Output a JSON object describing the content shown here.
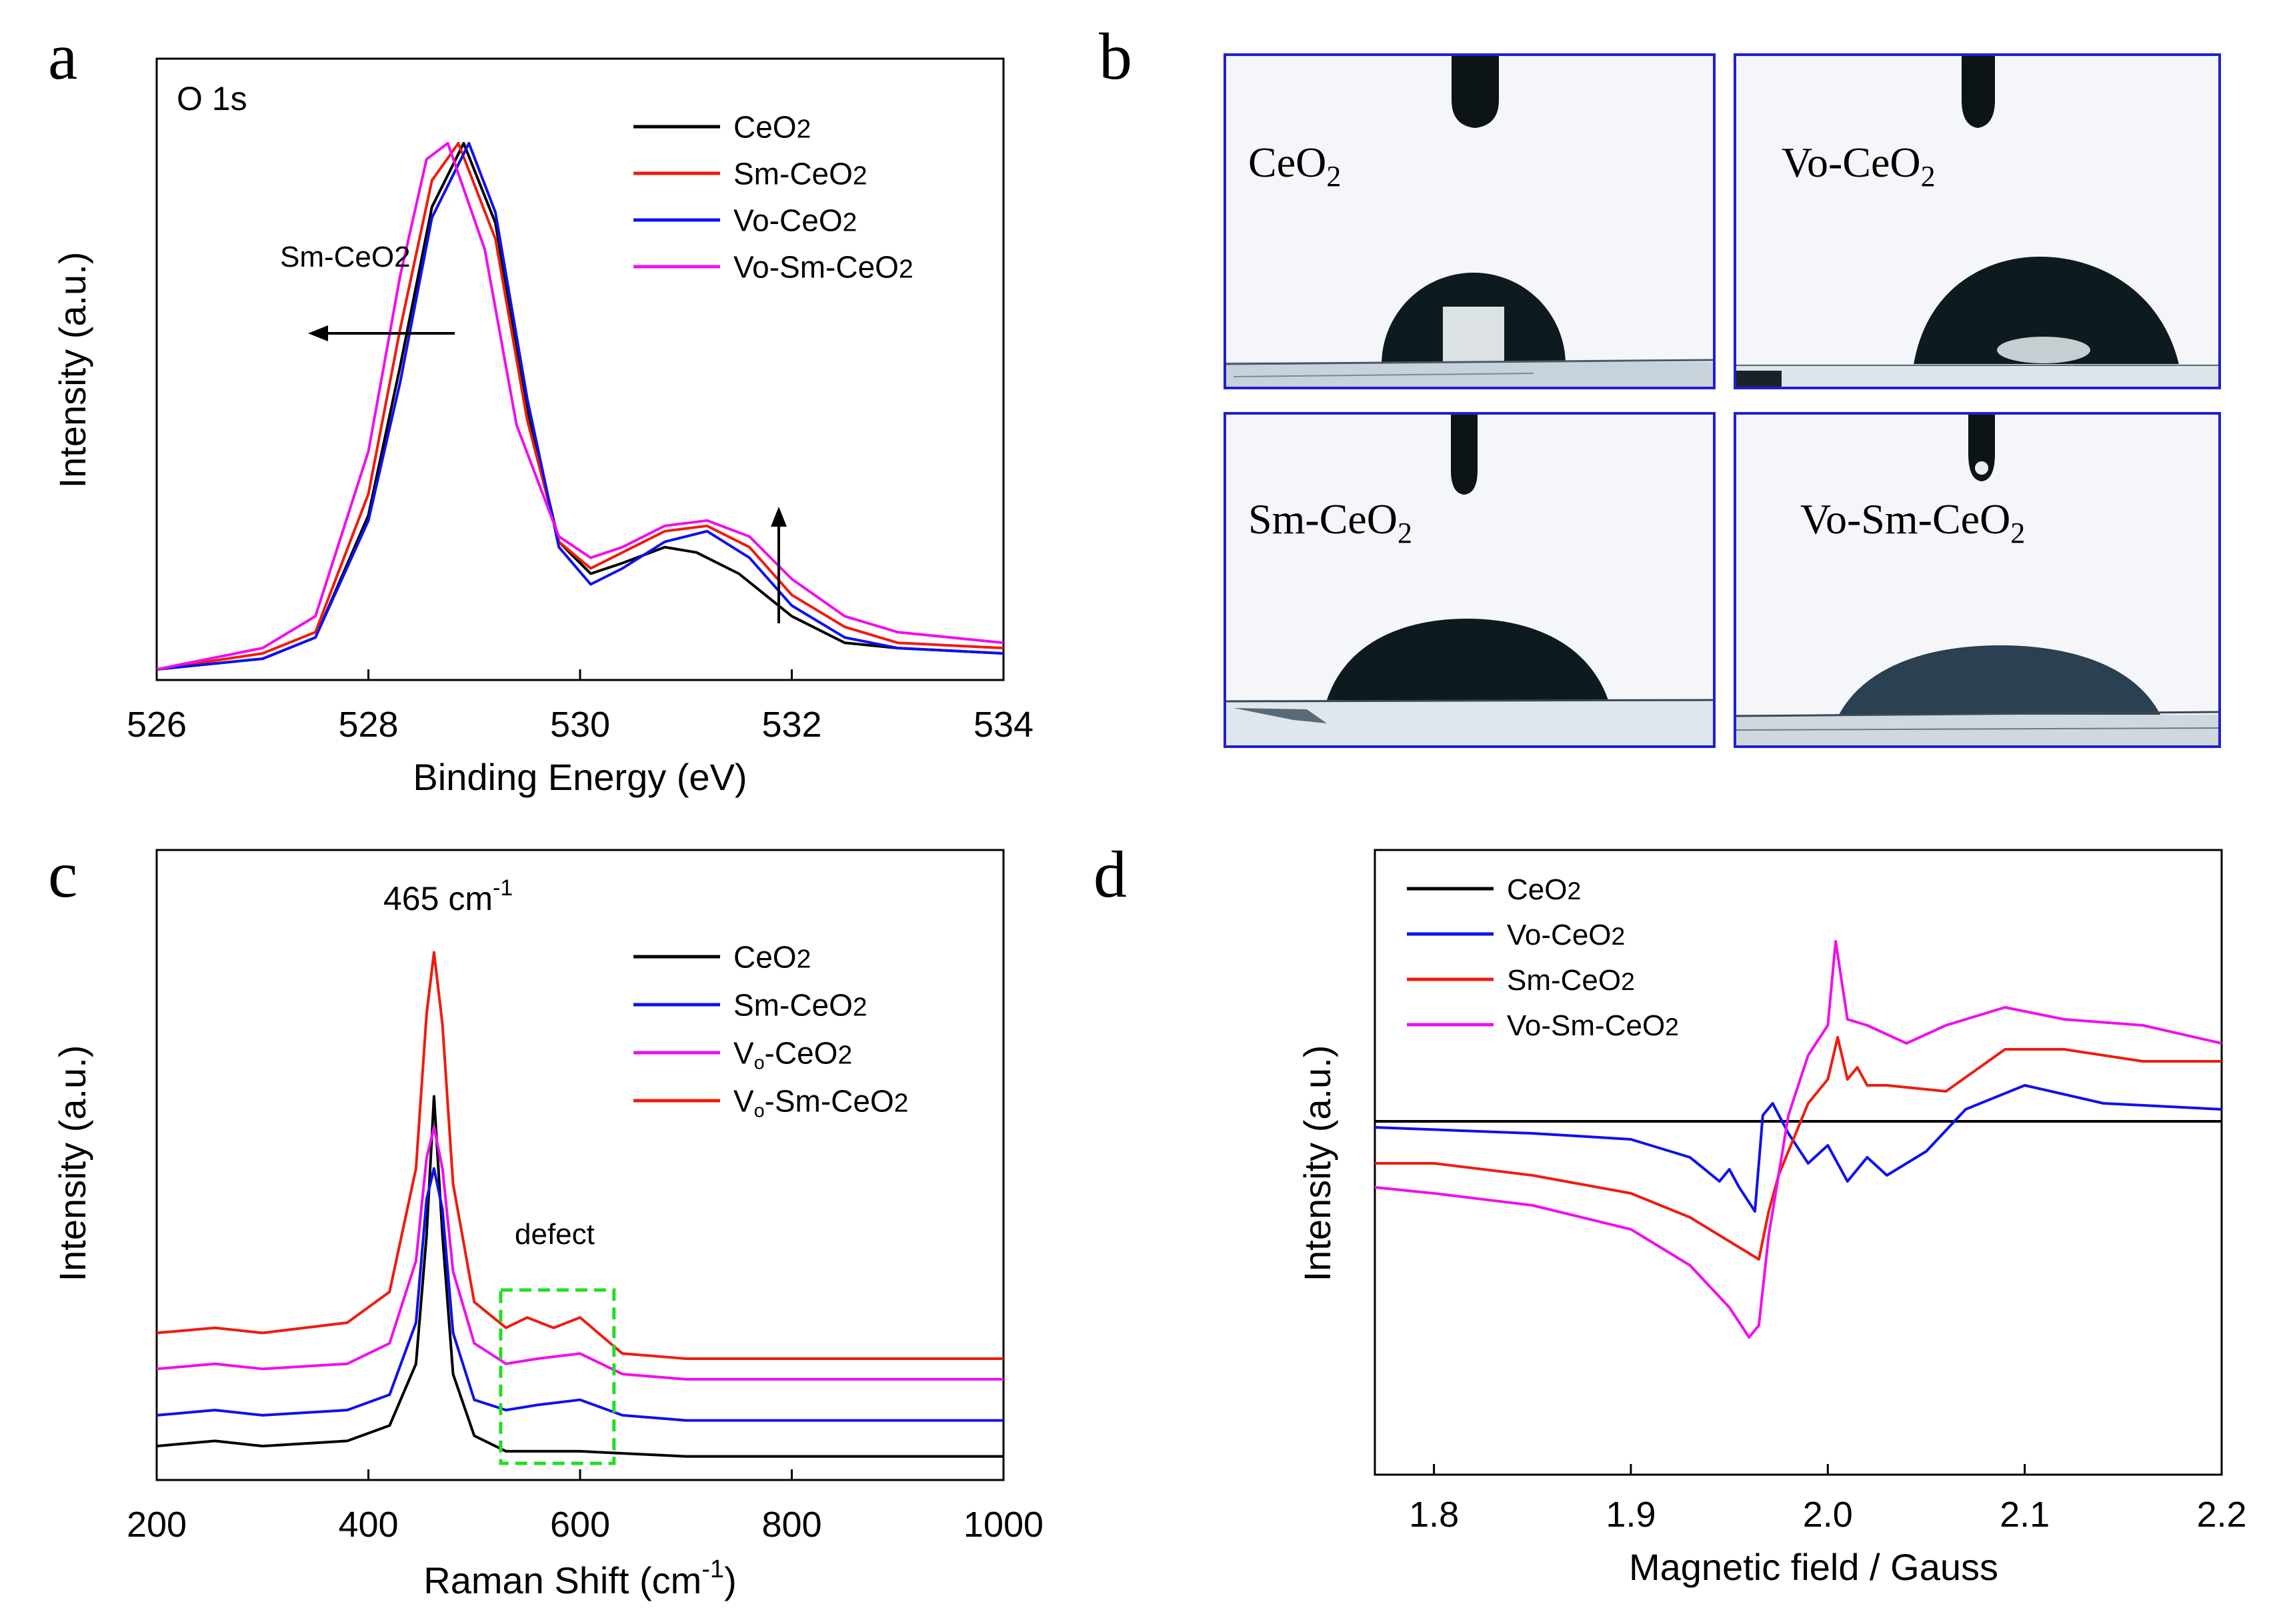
{
  "panels": {
    "a": {
      "letter": "a"
    },
    "b": {
      "letter": "b",
      "images": [
        {
          "label": "CeO",
          "sub": "2"
        },
        {
          "label": "Vo-CeO",
          "sub": "2"
        },
        {
          "label": "Sm-CeO",
          "sub": "2"
        },
        {
          "label": "Vo-Sm-CeO",
          "sub": "2"
        }
      ]
    },
    "c": {
      "letter": "c"
    },
    "d": {
      "letter": "d"
    }
  },
  "colors": {
    "black": "#000000",
    "red": "#ee1c10",
    "blue": "#1010ee",
    "magenta": "#ee10ee",
    "frame": "#2020d0",
    "green": "#22dd22"
  },
  "chart_data": [
    {
      "id": "a",
      "type": "line",
      "title": "",
      "xlabel": "Binding Energy (eV)",
      "ylabel": "Intensity (a.u.)",
      "xlim": [
        526,
        534
      ],
      "xticks": [
        526,
        528,
        530,
        532,
        534
      ],
      "ylim": [
        0,
        1.05
      ],
      "annotations": {
        "corner": "O 1s",
        "arrow_label": "Sm-CeO2"
      },
      "legend": {
        "placement": "top-right",
        "entries": [
          {
            "name": "CeO2",
            "base": "CeO",
            "sub": "2",
            "color": "#000000"
          },
          {
            "name": "Sm-CeO2",
            "base": "Sm-CeO",
            "sub": "2",
            "color": "#ee1c10"
          },
          {
            "name": "Vo-CeO2",
            "base": "Vo-CeO",
            "sub": "2",
            "color": "#1010ee"
          },
          {
            "name": "Vo-Sm-CeO2",
            "base": "Vo-Sm-CeO",
            "sub": "2",
            "color": "#ee10ee"
          }
        ]
      },
      "series": [
        {
          "name": "CeO2",
          "color": "#000000",
          "x": [
            526,
            527,
            527.5,
            528,
            528.3,
            528.6,
            528.9,
            529.2,
            529.5,
            529.8,
            530.1,
            530.4,
            530.8,
            531.1,
            531.5,
            532,
            532.5,
            533,
            534
          ],
          "y": [
            0.01,
            0.03,
            0.07,
            0.3,
            0.58,
            0.88,
            1.0,
            0.85,
            0.5,
            0.25,
            0.19,
            0.21,
            0.24,
            0.23,
            0.19,
            0.11,
            0.06,
            0.05,
            0.04
          ]
        },
        {
          "name": "Sm-CeO2",
          "color": "#ee1c10",
          "x": [
            526,
            527,
            527.5,
            528,
            528.3,
            528.6,
            528.85,
            529.2,
            529.5,
            529.8,
            530.1,
            530.4,
            530.8,
            531.2,
            531.6,
            532,
            532.5,
            533,
            534
          ],
          "y": [
            0.01,
            0.04,
            0.08,
            0.34,
            0.65,
            0.93,
            1.0,
            0.82,
            0.48,
            0.25,
            0.2,
            0.23,
            0.27,
            0.28,
            0.24,
            0.15,
            0.09,
            0.06,
            0.05
          ]
        },
        {
          "name": "Vo-CeO2",
          "color": "#1010ee",
          "x": [
            526,
            527,
            527.5,
            528,
            528.3,
            528.6,
            528.95,
            529.2,
            529.5,
            529.8,
            530.1,
            530.4,
            530.8,
            531.2,
            531.6,
            532,
            532.5,
            533,
            534
          ],
          "y": [
            0.01,
            0.03,
            0.07,
            0.29,
            0.55,
            0.86,
            1.0,
            0.87,
            0.52,
            0.24,
            0.17,
            0.2,
            0.25,
            0.27,
            0.22,
            0.13,
            0.07,
            0.05,
            0.04
          ]
        },
        {
          "name": "Vo-Sm-CeO2",
          "color": "#ee10ee",
          "x": [
            526,
            527,
            527.5,
            528,
            528.3,
            528.55,
            528.75,
            529.1,
            529.4,
            529.8,
            530.1,
            530.4,
            530.8,
            531.2,
            531.6,
            532,
            532.5,
            533,
            534
          ],
          "y": [
            0.01,
            0.05,
            0.11,
            0.42,
            0.75,
            0.97,
            1.0,
            0.8,
            0.47,
            0.26,
            0.22,
            0.24,
            0.28,
            0.29,
            0.26,
            0.18,
            0.11,
            0.08,
            0.06
          ]
        }
      ]
    },
    {
      "id": "c",
      "type": "line",
      "title": "",
      "xlabel": "Raman Shift (cm",
      "xlabel_sup": "-1",
      "xlabel_end": ")",
      "ylabel": "Intensity (a.u.)",
      "xlim": [
        200,
        1000
      ],
      "xticks": [
        200,
        400,
        600,
        800,
        1000
      ],
      "ylim": [
        0,
        1.05
      ],
      "annotations": {
        "peak_label": "465 cm",
        "peak_sup": "-1",
        "defect_label": "defect",
        "defect_box_x": [
          525,
          632
        ]
      },
      "legend": {
        "placement": "right",
        "entries": [
          {
            "name": "CeO2",
            "base": "CeO",
            "sub": "2",
            "color": "#000000"
          },
          {
            "name": "Sm-CeO2",
            "base": "Sm-CeO",
            "sub": "2",
            "color": "#1010ee"
          },
          {
            "name": "Vo-CeO2",
            "base": "V",
            "subo": "o",
            "rest": "-CeO",
            "sub": "2",
            "color": "#ee10ee"
          },
          {
            "name": "Vo-Sm-CeO2",
            "base": "V",
            "subo": "o",
            "rest": "-Sm-CeO",
            "sub": "2",
            "color": "#ee1c10"
          }
        ]
      },
      "series": [
        {
          "name": "CeO2",
          "color": "#000000",
          "x": [
            200,
            255,
            300,
            380,
            420,
            445,
            455,
            462,
            470,
            480,
            500,
            530,
            600,
            700,
            1000
          ],
          "y": [
            0.04,
            0.05,
            0.04,
            0.05,
            0.08,
            0.2,
            0.45,
            0.72,
            0.45,
            0.18,
            0.06,
            0.03,
            0.03,
            0.02,
            0.02
          ]
        },
        {
          "name": "Sm-CeO2",
          "color": "#1010ee",
          "x": [
            200,
            255,
            300,
            380,
            420,
            445,
            455,
            462,
            470,
            480,
            500,
            530,
            560,
            600,
            640,
            700,
            1000
          ],
          "y": [
            0.1,
            0.11,
            0.1,
            0.11,
            0.14,
            0.28,
            0.52,
            0.58,
            0.5,
            0.26,
            0.13,
            0.11,
            0.12,
            0.13,
            0.1,
            0.09,
            0.09
          ]
        },
        {
          "name": "Vo-CeO2",
          "color": "#ee10ee",
          "x": [
            200,
            255,
            300,
            380,
            420,
            445,
            455,
            462,
            470,
            480,
            500,
            530,
            560,
            600,
            640,
            700,
            1000
          ],
          "y": [
            0.19,
            0.2,
            0.19,
            0.2,
            0.24,
            0.4,
            0.6,
            0.66,
            0.58,
            0.38,
            0.24,
            0.2,
            0.21,
            0.22,
            0.18,
            0.17,
            0.17
          ]
        },
        {
          "name": "Vo-Sm-CeO2",
          "color": "#ee1c10",
          "x": [
            200,
            255,
            300,
            380,
            420,
            445,
            455,
            462,
            470,
            480,
            500,
            530,
            550,
            575,
            600,
            640,
            700,
            1000
          ],
          "y": [
            0.26,
            0.27,
            0.26,
            0.28,
            0.34,
            0.58,
            0.88,
            1.0,
            0.86,
            0.55,
            0.32,
            0.27,
            0.29,
            0.27,
            0.29,
            0.22,
            0.21,
            0.21
          ]
        }
      ]
    },
    {
      "id": "d",
      "type": "line",
      "title": "",
      "xlabel": "Magnetic field / Gauss",
      "ylabel": "Intensity (a.u.)",
      "xlim": [
        1.77,
        2.2
      ],
      "xticks": [
        1.8,
        1.9,
        2.0,
        2.1,
        2.2
      ],
      "xtick_labels": [
        "1.8",
        "1.9",
        "2.0",
        "2.1",
        "2.2"
      ],
      "ylim": [
        0,
        1
      ],
      "legend": {
        "placement": "top-left",
        "entries": [
          {
            "name": "CeO2",
            "base": "CeO",
            "sub": "2",
            "color": "#000000"
          },
          {
            "name": "Vo-CeO2",
            "base": "Vo-CeO",
            "sub": "2",
            "color": "#1010ee"
          },
          {
            "name": "Sm-CeO2",
            "base": "Sm-CeO",
            "sub": "2",
            "color": "#ee1c10"
          },
          {
            "name": "Vo-Sm-CeO2",
            "base": "Vo-Sm-CeO",
            "sub": "2",
            "color": "#ee10ee"
          }
        ]
      },
      "series": [
        {
          "name": "CeO2",
          "color": "#000000",
          "x": [
            1.77,
            1.85,
            1.95,
            2.0,
            2.05,
            2.1,
            2.2
          ],
          "y": [
            0.57,
            0.57,
            0.57,
            0.57,
            0.57,
            0.57,
            0.57
          ]
        },
        {
          "name": "Vo-CeO2",
          "color": "#1010ee",
          "x": [
            1.77,
            1.85,
            1.9,
            1.93,
            1.945,
            1.95,
            1.955,
            1.963,
            1.967,
            1.972,
            1.98,
            1.99,
            2.0,
            2.01,
            2.02,
            2.03,
            2.05,
            2.07,
            2.1,
            2.14,
            2.2
          ],
          "y": [
            0.56,
            0.55,
            0.54,
            0.51,
            0.47,
            0.49,
            0.46,
            0.42,
            0.58,
            0.6,
            0.55,
            0.5,
            0.53,
            0.47,
            0.51,
            0.48,
            0.52,
            0.59,
            0.63,
            0.6,
            0.59
          ]
        },
        {
          "name": "Sm-CeO2",
          "color": "#ee1c10",
          "x": [
            1.77,
            1.8,
            1.85,
            1.9,
            1.93,
            1.95,
            1.96,
            1.965,
            1.97,
            1.975,
            1.98,
            1.99,
            2.0,
            2.005,
            2.01,
            2.015,
            2.02,
            2.03,
            2.06,
            2.09,
            2.12,
            2.16,
            2.2
          ],
          "y": [
            0.5,
            0.5,
            0.48,
            0.45,
            0.41,
            0.37,
            0.35,
            0.34,
            0.42,
            0.48,
            0.52,
            0.6,
            0.64,
            0.71,
            0.64,
            0.66,
            0.63,
            0.63,
            0.62,
            0.69,
            0.69,
            0.67,
            0.67
          ]
        },
        {
          "name": "Vo-Sm-CeO2",
          "color": "#ee10ee",
          "x": [
            1.77,
            1.8,
            1.85,
            1.9,
            1.93,
            1.95,
            1.96,
            1.965,
            1.97,
            1.98,
            1.99,
            2.0,
            2.004,
            2.01,
            2.02,
            2.04,
            2.06,
            2.09,
            2.12,
            2.16,
            2.2
          ],
          "y": [
            0.46,
            0.45,
            0.43,
            0.39,
            0.33,
            0.26,
            0.21,
            0.23,
            0.38,
            0.58,
            0.68,
            0.73,
            0.87,
            0.74,
            0.73,
            0.7,
            0.73,
            0.76,
            0.74,
            0.73,
            0.7
          ]
        }
      ]
    }
  ]
}
